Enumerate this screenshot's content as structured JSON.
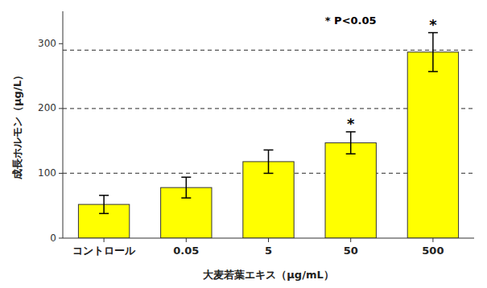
{
  "chart_data": {
    "type": "bar",
    "categories": [
      "コントロール",
      "0.05",
      "5",
      "50",
      "500"
    ],
    "values": [
      52,
      78,
      118,
      147,
      287
    ],
    "errors": [
      14,
      16,
      18,
      17,
      30
    ],
    "color": "#FFFF00",
    "xlabel": "大麦若葉エキス（μg/mL）",
    "ylabel": "成長ホルモン（μg/L）",
    "ylim": [
      0,
      350
    ],
    "yticks": [
      0,
      100,
      200,
      300
    ],
    "grid": false,
    "reference_lines": [
      100,
      200,
      290
    ],
    "significance_markers": [
      {
        "category": "50",
        "label": "*"
      },
      {
        "category": "500",
        "label": "*"
      }
    ],
    "annotations": [
      {
        "text": "* P<0.05",
        "category": "50",
        "y": 335
      }
    ]
  }
}
